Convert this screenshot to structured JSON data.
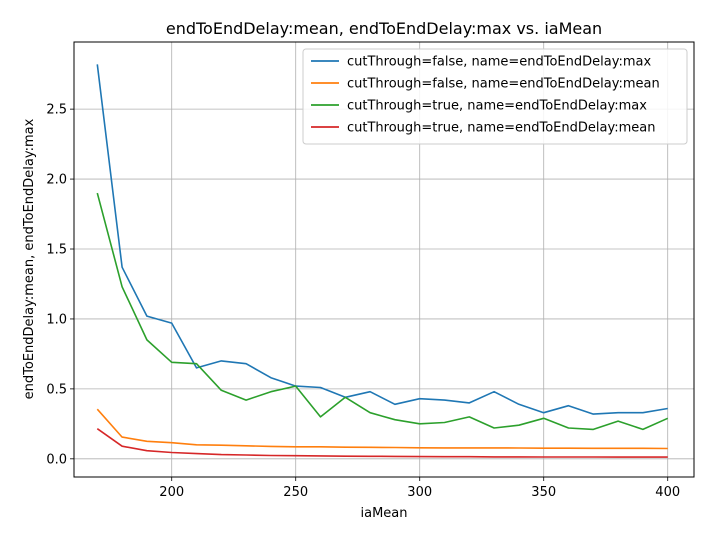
{
  "chart_data": {
    "type": "line",
    "title": "endToEndDelay:mean, endToEndDelay:max vs. iaMean",
    "xlabel": "iaMean",
    "ylabel": "endToEndDelay:mean, endToEndDelay:max",
    "xlim": [
      160.6,
      410.6
    ],
    "ylim": [
      -0.13,
      2.98
    ],
    "xticks": [
      200,
      250,
      300,
      350,
      400
    ],
    "yticks": [
      0.0,
      0.5,
      1.0,
      1.5,
      2.0,
      2.5
    ],
    "xtick_labels": [
      "200",
      "250",
      "300",
      "350",
      "400"
    ],
    "ytick_labels": [
      "0.0",
      "0.5",
      "1.0",
      "1.5",
      "2.0",
      "2.5"
    ],
    "grid": true,
    "legend_position": "top-right",
    "x": [
      170,
      180,
      190,
      200,
      210,
      220,
      230,
      240,
      250,
      260,
      270,
      280,
      290,
      300,
      310,
      320,
      330,
      340,
      350,
      360,
      370,
      380,
      390,
      400
    ],
    "series": [
      {
        "name": "cutThrough=false, name=endToEndDelay:max",
        "color": "#1f77b4",
        "values": [
          2.82,
          1.37,
          1.02,
          0.97,
          0.65,
          0.7,
          0.68,
          0.58,
          0.52,
          0.51,
          0.44,
          0.48,
          0.39,
          0.43,
          0.42,
          0.4,
          0.48,
          0.39,
          0.33,
          0.38,
          0.32,
          0.33,
          0.33,
          0.36
        ]
      },
      {
        "name": "cutThrough=false, name=endToEndDelay:mean",
        "color": "#ff7f0e",
        "values": [
          0.355,
          0.155,
          0.125,
          0.115,
          0.1,
          0.097,
          0.093,
          0.089,
          0.086,
          0.086,
          0.083,
          0.082,
          0.081,
          0.079,
          0.078,
          0.078,
          0.078,
          0.077,
          0.076,
          0.076,
          0.075,
          0.075,
          0.075,
          0.074
        ]
      },
      {
        "name": "cutThrough=true, name=endToEndDelay:max",
        "color": "#2ca02c",
        "values": [
          1.9,
          1.23,
          0.85,
          0.69,
          0.68,
          0.49,
          0.42,
          0.48,
          0.52,
          0.3,
          0.44,
          0.33,
          0.28,
          0.25,
          0.26,
          0.3,
          0.22,
          0.24,
          0.29,
          0.22,
          0.21,
          0.27,
          0.21,
          0.29
        ]
      },
      {
        "name": "cutThrough=true, name=endToEndDelay:mean",
        "color": "#d62728",
        "values": [
          0.215,
          0.09,
          0.058,
          0.045,
          0.037,
          0.03,
          0.027,
          0.024,
          0.022,
          0.021,
          0.019,
          0.018,
          0.017,
          0.016,
          0.015,
          0.015,
          0.014,
          0.014,
          0.013,
          0.013,
          0.013,
          0.012,
          0.012,
          0.012
        ]
      }
    ]
  }
}
